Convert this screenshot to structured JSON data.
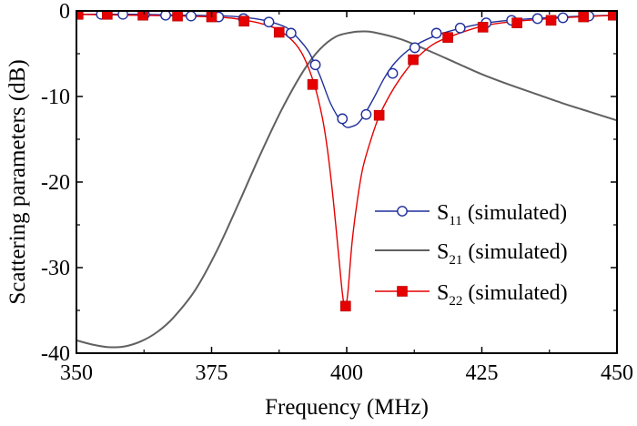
{
  "chart_data": {
    "type": "line",
    "title": "",
    "xlabel": "Frequency (MHz)",
    "ylabel": "Scattering parameters (dB)",
    "xlim": [
      350,
      450
    ],
    "ylim": [
      -40,
      0
    ],
    "xticks": [
      350,
      375,
      400,
      425,
      450
    ],
    "yticks": [
      0,
      -10,
      -20,
      -30,
      -40
    ],
    "xtick_labels": [
      "350",
      "375",
      "400",
      "425",
      "450"
    ],
    "ytick_labels": [
      "0",
      "-10",
      "-20",
      "-30",
      "-40"
    ],
    "legend_position": "bottom-right",
    "grid": false,
    "series": [
      {
        "name": "S11 (simulated)",
        "legend_main": "S",
        "legend_sub": "11",
        "legend_rest": " (simulated)",
        "color": "#1f2f9c",
        "marker": "open-circle",
        "line": {
          "x": [
            350,
            360,
            370,
            378,
            383,
            386,
            389,
            391,
            393,
            395,
            397,
            399,
            400,
            401,
            402,
            403,
            405,
            407,
            409,
            412,
            416,
            420,
            425,
            430,
            440,
            450
          ],
          "y": [
            -0.4,
            -0.4,
            -0.5,
            -0.6,
            -0.9,
            -1.3,
            -2.0,
            -3.2,
            -4.8,
            -7.5,
            -10.8,
            -13.0,
            -13.6,
            -13.5,
            -13.2,
            -12.4,
            -10.2,
            -7.8,
            -6.0,
            -4.3,
            -3.0,
            -2.2,
            -1.5,
            -1.1,
            -0.7,
            -0.5
          ]
        },
        "markers": {
          "x": [
            354.6,
            358.6,
            362.6,
            366.5,
            371.2,
            376.3,
            380.9,
            385.6,
            389.7,
            394.2,
            399.2,
            403.6,
            408.5,
            412.6,
            416.6,
            421.0,
            425.8,
            430.5,
            435.3,
            440.0,
            444.8,
            449.6
          ],
          "y": [
            -0.4,
            -0.4,
            -0.4,
            -0.5,
            -0.6,
            -0.7,
            -0.9,
            -1.3,
            -2.6,
            -6.3,
            -12.6,
            -12.1,
            -7.3,
            -4.3,
            -2.6,
            -2.0,
            -1.4,
            -1.1,
            -0.9,
            -0.8,
            -0.6,
            -0.5
          ]
        }
      },
      {
        "name": "S21 (simulated)",
        "legend_main": "S",
        "legend_sub": "21",
        "legend_rest": " (simulated)",
        "color": "#606060",
        "marker": "none",
        "line": {
          "x": [
            350,
            353,
            356,
            359,
            362,
            365,
            368,
            372,
            376,
            380,
            384,
            388,
            392,
            395,
            398,
            401,
            403,
            405,
            410,
            415,
            420,
            425,
            430,
            435,
            440,
            445,
            450
          ],
          "y": [
            -38.5,
            -39.0,
            -39.3,
            -39.2,
            -38.6,
            -37.5,
            -35.8,
            -32.6,
            -28.0,
            -22.5,
            -16.8,
            -11.5,
            -7.0,
            -4.5,
            -3.0,
            -2.5,
            -2.4,
            -2.5,
            -3.3,
            -4.6,
            -6.0,
            -7.4,
            -8.6,
            -9.7,
            -10.8,
            -11.8,
            -12.8
          ]
        },
        "markers": {
          "x": [],
          "y": []
        }
      },
      {
        "name": "S22 (simulated)",
        "legend_main": "S",
        "legend_sub": "22",
        "legend_rest": " (simulated)",
        "color": "#e60000",
        "marker": "filled-square",
        "line": {
          "x": [
            350,
            360,
            370,
            378,
            383,
            387,
            390,
            392,
            394,
            395.5,
            396.5,
            397.5,
            398.5,
            399.2,
            399.7,
            400.2,
            401,
            402,
            403,
            404.5,
            406,
            408,
            410,
            412.5,
            416,
            420,
            425,
            430,
            440,
            450
          ],
          "y": [
            -0.4,
            -0.5,
            -0.6,
            -0.8,
            -1.3,
            -2.1,
            -3.5,
            -5.3,
            -8.6,
            -12.5,
            -16.5,
            -22.0,
            -28.5,
            -33.0,
            -34.7,
            -33.0,
            -27.0,
            -22.0,
            -18.3,
            -15.0,
            -12.3,
            -9.8,
            -7.8,
            -5.8,
            -3.9,
            -2.8,
            -1.8,
            -1.3,
            -0.8,
            -0.5
          ]
        },
        "markers": {
          "x": [
            350.3,
            355.7,
            362.3,
            368.7,
            375.0,
            381.0,
            387.5,
            393.7,
            399.8,
            406.0,
            412.3,
            418.7,
            425.2,
            431.5,
            437.8,
            443.8,
            449.3
          ],
          "y": [
            -0.4,
            -0.4,
            -0.5,
            -0.6,
            -0.7,
            -1.2,
            -2.5,
            -8.6,
            -34.5,
            -12.2,
            -5.7,
            -3.1,
            -1.9,
            -1.4,
            -1.1,
            -0.7,
            -0.5
          ]
        }
      }
    ]
  }
}
